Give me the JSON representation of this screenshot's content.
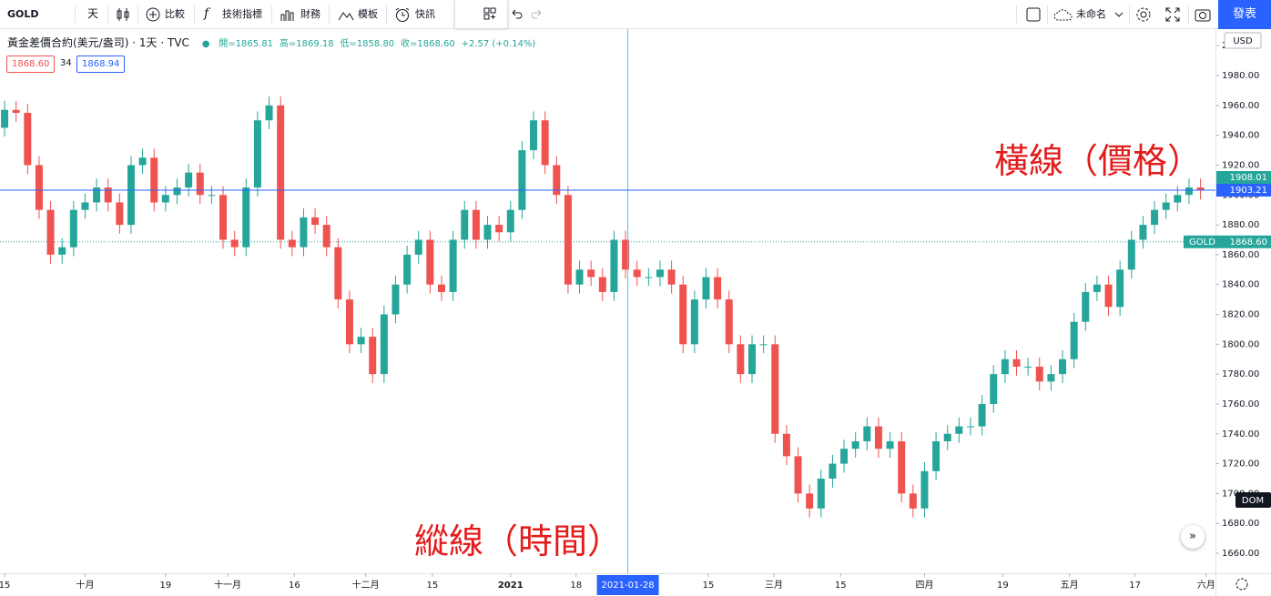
{
  "toolbar": {
    "symbol": "GOLD",
    "interval": "天",
    "compare": "比較",
    "indicators": "技術指標",
    "financials": "財務",
    "templates": "模板",
    "alerts": "快訊",
    "layout_name": "未命名",
    "publish": "發表"
  },
  "chart_data": {
    "type": "candlestick",
    "title": "黃金差價合約(美元/盎司)",
    "interval": "1天",
    "source": "TVC",
    "ohlc_legend": {
      "open": "開=1865.81",
      "high": "高=1869.18",
      "low": "低=1858.80",
      "close": "收=1868.60",
      "change": "+2.57 (+0.14%)"
    },
    "bid": "1868.60",
    "spread": "34",
    "ask": "1868.94",
    "currency": "USD",
    "dom": "DOM",
    "annotations": [
      {
        "text": "橫線（價格）",
        "color": "#e31c1c"
      },
      {
        "text": "縱線（時間）",
        "color": "#e31c1c"
      }
    ],
    "up_color": "#26a69a",
    "down_color": "#ef5350",
    "open": [
      1945,
      1957,
      1955,
      1920,
      1890,
      1860,
      1865,
      1890,
      1895,
      1905,
      1895,
      1880,
      1920,
      1925,
      1895,
      1900,
      1905,
      1915,
      1900,
      1900,
      1870,
      1865,
      1905,
      1950,
      1960,
      1870,
      1865,
      1885,
      1880,
      1865,
      1830,
      1800,
      1805,
      1780,
      1820,
      1840,
      1860,
      1870,
      1840,
      1835,
      1870,
      1890,
      1870,
      1880,
      1875,
      1890,
      1930,
      1950,
      1920,
      1900,
      1840,
      1850,
      1845,
      1835,
      1870,
      1850,
      1845,
      1845,
      1850,
      1840,
      1800,
      1830,
      1845,
      1830,
      1800,
      1780,
      1800,
      1800,
      1740,
      1725,
      1700,
      1690,
      1710,
      1720,
      1730,
      1735,
      1745,
      1730,
      1735,
      1700,
      1690,
      1715,
      1735,
      1740,
      1745,
      1745,
      1760,
      1780,
      1790,
      1785,
      1785,
      1775,
      1780,
      1790,
      1815,
      1835,
      1840,
      1825,
      1850,
      1870,
      1880,
      1890,
      1895,
      1900,
      1905
    ],
    "high": [
      1963,
      1963,
      1961,
      1926,
      1896,
      1871,
      1896,
      1901,
      1911,
      1911,
      1901,
      1926,
      1931,
      1931,
      1906,
      1911,
      1921,
      1921,
      1906,
      1906,
      1876,
      1911,
      1956,
      1966,
      1966,
      1876,
      1891,
      1891,
      1886,
      1871,
      1836,
      1811,
      1811,
      1826,
      1846,
      1866,
      1876,
      1876,
      1846,
      1876,
      1896,
      1896,
      1886,
      1886,
      1896,
      1936,
      1956,
      1956,
      1926,
      1906,
      1856,
      1856,
      1851,
      1876,
      1876,
      1856,
      1851,
      1856,
      1856,
      1846,
      1836,
      1851,
      1851,
      1836,
      1806,
      1806,
      1806,
      1806,
      1746,
      1731,
      1706,
      1716,
      1726,
      1736,
      1741,
      1751,
      1751,
      1741,
      1741,
      1706,
      1721,
      1741,
      1746,
      1751,
      1751,
      1766,
      1786,
      1796,
      1796,
      1791,
      1791,
      1786,
      1796,
      1821,
      1841,
      1846,
      1846,
      1856,
      1876,
      1886,
      1896,
      1901,
      1906,
      1911,
      1911
    ],
    "low": [
      1939,
      1949,
      1914,
      1884,
      1854,
      1854,
      1859,
      1884,
      1889,
      1889,
      1874,
      1874,
      1914,
      1889,
      1889,
      1894,
      1899,
      1894,
      1894,
      1864,
      1859,
      1859,
      1899,
      1944,
      1864,
      1859,
      1859,
      1874,
      1859,
      1824,
      1794,
      1794,
      1774,
      1774,
      1814,
      1834,
      1854,
      1834,
      1829,
      1829,
      1864,
      1864,
      1864,
      1869,
      1869,
      1884,
      1924,
      1914,
      1894,
      1834,
      1834,
      1839,
      1829,
      1829,
      1844,
      1839,
      1839,
      1839,
      1834,
      1794,
      1794,
      1824,
      1824,
      1794,
      1774,
      1774,
      1794,
      1734,
      1719,
      1694,
      1684,
      1684,
      1704,
      1714,
      1724,
      1729,
      1724,
      1724,
      1694,
      1684,
      1684,
      1709,
      1729,
      1734,
      1739,
      1739,
      1754,
      1774,
      1779,
      1779,
      1769,
      1769,
      1774,
      1784,
      1809,
      1829,
      1819,
      1819,
      1844,
      1864,
      1874,
      1884,
      1889,
      1894,
      1897
    ],
    "close": [
      1957,
      1955,
      1920,
      1890,
      1860,
      1865,
      1890,
      1895,
      1905,
      1895,
      1880,
      1920,
      1925,
      1895,
      1900,
      1905,
      1915,
      1900,
      1900,
      1870,
      1865,
      1905,
      1950,
      1960,
      1870,
      1865,
      1885,
      1880,
      1865,
      1830,
      1800,
      1805,
      1780,
      1820,
      1840,
      1860,
      1870,
      1840,
      1835,
      1870,
      1890,
      1870,
      1880,
      1875,
      1890,
      1930,
      1950,
      1920,
      1900,
      1840,
      1850,
      1845,
      1835,
      1870,
      1850,
      1845,
      1845,
      1850,
      1840,
      1800,
      1830,
      1845,
      1830,
      1800,
      1780,
      1800,
      1800,
      1740,
      1725,
      1700,
      1690,
      1710,
      1720,
      1730,
      1735,
      1745,
      1730,
      1735,
      1700,
      1690,
      1715,
      1735,
      1740,
      1745,
      1745,
      1760,
      1780,
      1790,
      1785,
      1785,
      1775,
      1780,
      1790,
      1815,
      1835,
      1840,
      1825,
      1850,
      1870,
      1880,
      1890,
      1895,
      1900,
      1905,
      1903
    ],
    "xlim": [
      -0.4,
      105.3
    ],
    "xticks": [
      {
        "value": 0,
        "label": "15"
      },
      {
        "value": 7,
        "label": "十月"
      },
      {
        "value": 14,
        "label": "19"
      },
      {
        "value": 19.4,
        "label": "十一月"
      },
      {
        "value": 25.2,
        "label": "16"
      },
      {
        "value": 31.4,
        "label": "十二月"
      },
      {
        "value": 37.2,
        "label": "15"
      },
      {
        "value": 44,
        "label": "2021"
      },
      {
        "value": 49.7,
        "label": "18"
      },
      {
        "value": 61.2,
        "label": "15"
      },
      {
        "value": 66.9,
        "label": "三月"
      },
      {
        "value": 72.7,
        "label": "15"
      },
      {
        "value": 80,
        "label": "四月"
      },
      {
        "value": 86.8,
        "label": "19"
      },
      {
        "value": 92.6,
        "label": "五月"
      },
      {
        "value": 98.3,
        "label": "17"
      },
      {
        "value": 104.5,
        "label": "六月"
      }
    ],
    "ylim": [
      1646.6,
      2011.1
    ],
    "yticks": [
      {
        "value": 1660,
        "label": "1660.00"
      },
      {
        "value": 1680,
        "label": "1680.00"
      },
      {
        "value": 1700,
        "label": "1700.00"
      },
      {
        "value": 1720,
        "label": "1720.00"
      },
      {
        "value": 1740,
        "label": "1740.00"
      },
      {
        "value": 1760,
        "label": "1760.00"
      },
      {
        "value": 1780,
        "label": "1780.00"
      },
      {
        "value": 1800,
        "label": "1800.00"
      },
      {
        "value": 1820,
        "label": "1820.00"
      },
      {
        "value": 1840,
        "label": "1840.00"
      },
      {
        "value": 1860,
        "label": "1860.00"
      },
      {
        "value": 1880,
        "label": "1880.00"
      },
      {
        "value": 1900,
        "label": "1900.00"
      },
      {
        "value": 1920,
        "label": "1920.00"
      },
      {
        "value": 1940,
        "label": "1940.00"
      },
      {
        "value": 1960,
        "label": "1960.00"
      },
      {
        "value": 1980,
        "label": "1980.00"
      },
      {
        "value": 2000,
        "label": "2000.00"
      }
    ],
    "crosshair": {
      "value": 54.2,
      "label": "2021-01-28",
      "color": "#4fc3f7"
    },
    "horizontal_line": {
      "value": 1903.21,
      "color": "#2962ff"
    },
    "price_tag": {
      "value": 1908.01,
      "color": "#26a69a"
    },
    "last_price": {
      "name": "GOLD",
      "value": 1868.6,
      "label": "1868.60",
      "color": "#26a69a"
    }
  }
}
